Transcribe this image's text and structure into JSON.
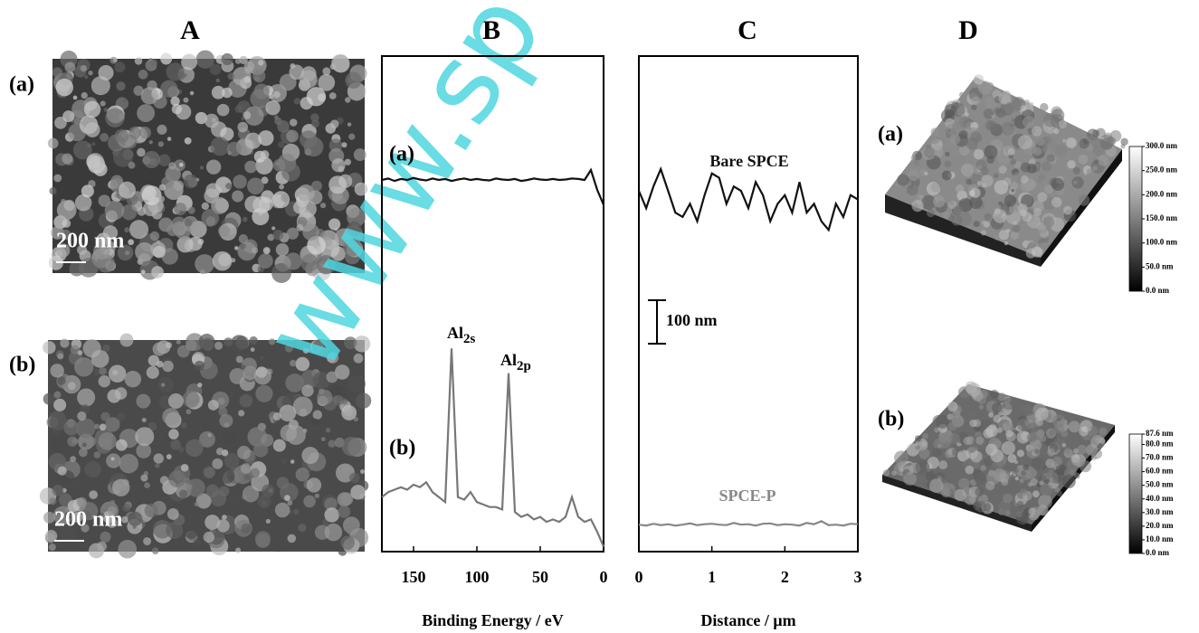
{
  "panel_labels": [
    "A",
    "B",
    "C",
    "D"
  ],
  "watermark": "www.sp",
  "sem": {
    "labels": [
      "(a)",
      "(b)"
    ],
    "scale_bars": [
      "200 nm",
      "200 nm"
    ]
  },
  "afm": {
    "labels": [
      "(a)",
      "(b)"
    ],
    "colorbars": [
      {
        "ylim": [
          0,
          300
        ],
        "ticks": [
          {
            "value": 300,
            "label": "300.0 nm"
          },
          {
            "value": 250,
            "label": "250.0 nm"
          },
          {
            "value": 200,
            "label": "200.0 nm"
          },
          {
            "value": 150,
            "label": "150.0 nm"
          },
          {
            "value": 100,
            "label": "100.0 nm"
          },
          {
            "value": 50,
            "label": "50.0 nm"
          },
          {
            "value": 0,
            "label": "0.0 nm"
          }
        ]
      },
      {
        "ylim": [
          0,
          87.6
        ],
        "ticks": [
          {
            "value": 87.6,
            "label": "87.6 nm"
          },
          {
            "value": 80,
            "label": "80.0 nm"
          },
          {
            "value": 70,
            "label": "70.0 nm"
          },
          {
            "value": 60,
            "label": "60.0 nm"
          },
          {
            "value": 50,
            "label": "50.0 nm"
          },
          {
            "value": 40,
            "label": "40.0 nm"
          },
          {
            "value": 30,
            "label": "30.0 nm"
          },
          {
            "value": 20,
            "label": "20.0 nm"
          },
          {
            "value": 10,
            "label": "10.0 nm"
          },
          {
            "value": 0,
            "label": "0.0 nm"
          }
        ]
      }
    ]
  },
  "chart_data": [
    {
      "type": "line",
      "xlabel": "Binding Energy / eV",
      "xlim": [
        175,
        0
      ],
      "xticks": [
        150,
        100,
        50,
        0
      ],
      "ylim": [
        0,
        100
      ],
      "x": [
        175,
        170,
        165,
        160,
        155,
        150,
        145,
        140,
        135,
        130,
        125,
        120,
        115,
        110,
        105,
        100,
        95,
        90,
        85,
        80,
        75,
        70,
        65,
        60,
        55,
        50,
        45,
        40,
        35,
        30,
        25,
        20,
        15,
        10,
        5,
        0
      ],
      "series": [
        {
          "name": "(a)",
          "color": "#111111",
          "values": [
            75,
            75.3,
            74.8,
            75.2,
            75,
            75.4,
            75.1,
            74.9,
            75.3,
            75,
            75.2,
            74.8,
            75.1,
            75.3,
            75,
            75.2,
            75,
            74.9,
            75.3,
            75.1,
            75,
            75.2,
            74.8,
            75,
            75.3,
            75.1,
            75,
            75.2,
            75,
            75.1,
            75.3,
            75.2,
            75,
            77,
            73,
            70
          ]
        },
        {
          "name": "(b)",
          "color": "#777777",
          "values": [
            11,
            12,
            12.5,
            13,
            12.5,
            13.5,
            13,
            14,
            12,
            11,
            10,
            41,
            11,
            10.5,
            12,
            10,
            9.5,
            9,
            9,
            8.5,
            36,
            8,
            7,
            7.5,
            6.5,
            7,
            6,
            6.5,
            6,
            7,
            11,
            7,
            6,
            6.5,
            4,
            1
          ]
        }
      ],
      "annotations": [
        {
          "text": "Al",
          "subscript": "2s"
        },
        {
          "text": "Al",
          "subscript": "2p"
        }
      ]
    },
    {
      "type": "line",
      "xlabel": "Distance / μm",
      "xlim": [
        0,
        3
      ],
      "xticks": [
        0,
        1,
        2,
        3
      ],
      "ylim": [
        0,
        1140
      ],
      "scale_bar": {
        "value": 100,
        "label": "100 nm"
      },
      "x": [
        0,
        0.1,
        0.2,
        0.3,
        0.4,
        0.5,
        0.6,
        0.7,
        0.8,
        0.9,
        1,
        1.1,
        1.2,
        1.3,
        1.4,
        1.5,
        1.6,
        1.7,
        1.8,
        1.9,
        2,
        2.1,
        2.2,
        2.3,
        2.4,
        2.5,
        2.6,
        2.7,
        2.8,
        2.9,
        3
      ],
      "series": [
        {
          "name": "Bare SPCE",
          "color": "#111111",
          "values": [
            830,
            790,
            840,
            880,
            830,
            780,
            770,
            800,
            760,
            820,
            870,
            860,
            800,
            840,
            830,
            790,
            850,
            820,
            760,
            800,
            820,
            780,
            850,
            780,
            800,
            760,
            740,
            800,
            770,
            820,
            810
          ]
        },
        {
          "name": "SPCE-P",
          "color": "#888888",
          "values": [
            62,
            60,
            64,
            61,
            63,
            60,
            62,
            65,
            61,
            63,
            64,
            62,
            61,
            66,
            62,
            63,
            60,
            64,
            65,
            61,
            63,
            62,
            60,
            66,
            63,
            70,
            61,
            62,
            60,
            64,
            63
          ]
        }
      ]
    }
  ]
}
